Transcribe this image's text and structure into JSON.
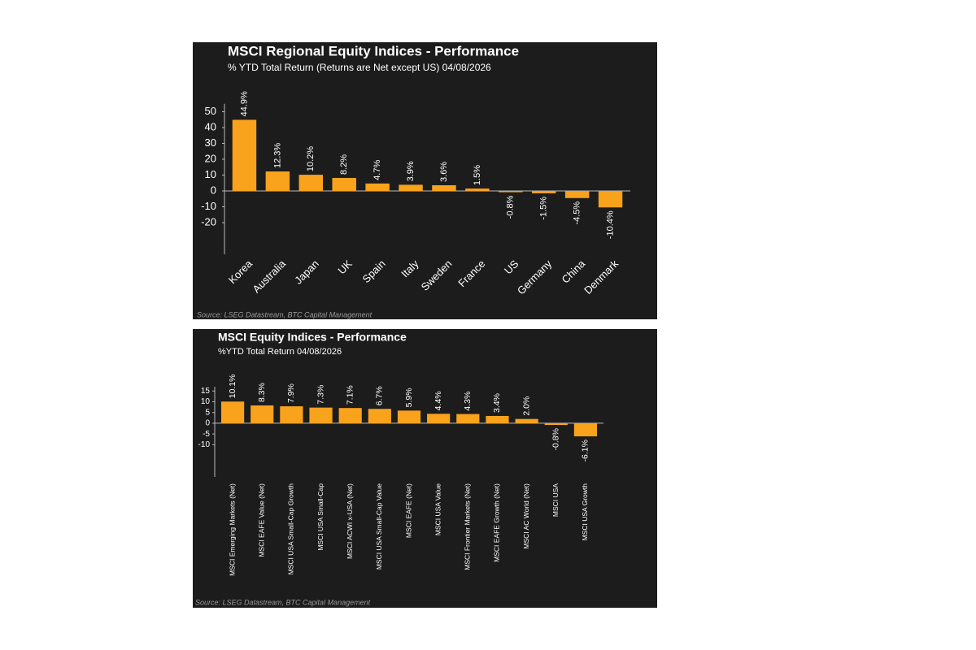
{
  "chart_data": [
    {
      "type": "bar",
      "title": "MSCI Regional Equity Indices - Performance",
      "subtitle": "% YTD Total Return (Returns are Net except US) 04/08/2026",
      "source": "Source: LSEG Datastream, BTC Capital Management",
      "categories": [
        "Korea",
        "Australia",
        "Japan",
        "UK",
        "Spain",
        "Italy",
        "Sweden",
        "France",
        "US",
        "Germany",
        "China",
        "Denmark"
      ],
      "values": [
        44.9,
        12.3,
        10.2,
        8.2,
        4.7,
        3.9,
        3.6,
        1.5,
        -0.8,
        -1.5,
        -4.5,
        -10.4
      ],
      "value_labels": [
        "44.9%",
        "12.3%",
        "10.2%",
        "8.2%",
        "4.7%",
        "3.9%",
        "3.6%",
        "1.5%",
        "-0.8%",
        "-1.5%",
        "-4.5%",
        "-10.4%"
      ],
      "color": "#f9a21c",
      "ylim": [
        -40,
        55
      ],
      "yticks": [
        -20,
        -10,
        0,
        10,
        20,
        30,
        40,
        50
      ],
      "grid": false
    },
    {
      "type": "bar",
      "title": "MSCI Equity Indices - Performance",
      "subtitle": "%YTD Total Return  04/08/2026",
      "source": "Source: LSEG Datastream, BTC Capital Management",
      "categories": [
        "MSCI Emerging Markets (Net)",
        "MSCI EAFE Value (Net)",
        "MSCI USA Small-Cap Growth",
        "MSCI USA Small-Cap",
        "MSCI ACWI x-USA (Net)",
        "MSCI USA Small-Cap Value",
        "MSCI EAFE (Net)",
        "MSCI USA Value",
        "MSCI Frontier Markets (Net)",
        "MSCI EAFE Growth (Net)",
        "MSCI AC World (Net)",
        "MSCI USA",
        "MSCI USA Growth"
      ],
      "values": [
        10.1,
        8.3,
        7.9,
        7.3,
        7.1,
        6.7,
        5.9,
        4.4,
        4.3,
        3.4,
        2.0,
        -0.8,
        -6.1
      ],
      "value_labels": [
        "10.1%",
        "8.3%",
        "7.9%",
        "7.3%",
        "7.1%",
        "6.7%",
        "5.9%",
        "4.4%",
        "4.3%",
        "3.4%",
        "2.0%",
        "-0.8%",
        "-6.1%"
      ],
      "color": "#f9a21c",
      "ylim": [
        -25,
        17
      ],
      "yticks": [
        -10,
        -5,
        0,
        5,
        10,
        15
      ],
      "grid": false
    }
  ]
}
